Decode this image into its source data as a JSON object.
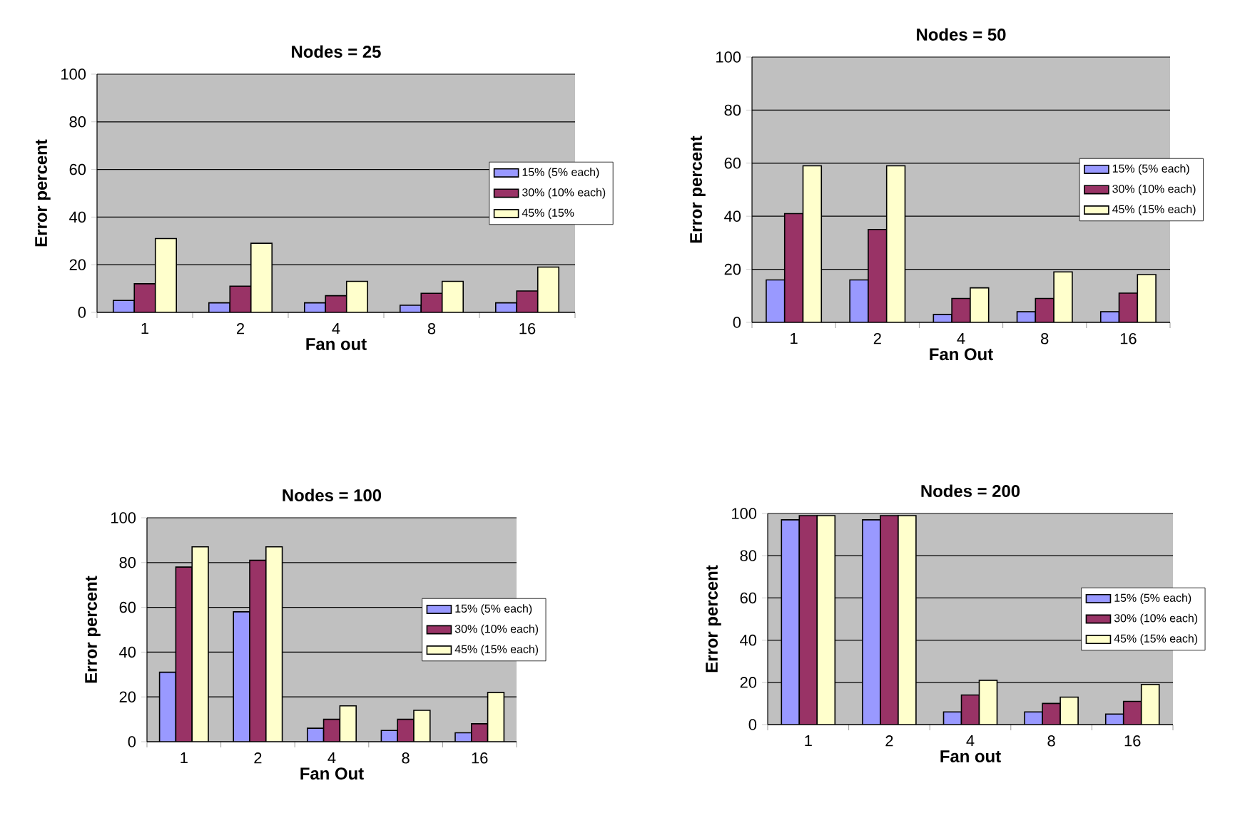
{
  "chart_data": [
    {
      "type": "bar",
      "title": "Nodes = 25",
      "xlabel": "Fan out",
      "ylabel": "Error percent",
      "categories": [
        "1",
        "2",
        "4",
        "8",
        "16"
      ],
      "ylim": [
        0,
        100
      ],
      "yticks": [
        0,
        20,
        40,
        60,
        80,
        100
      ],
      "grid": "y",
      "legend": "right",
      "series": [
        {
          "name": "15% (5% each)",
          "color": "#9999ff",
          "values": [
            5,
            4,
            4,
            3,
            4
          ]
        },
        {
          "name": "30% (10% each)",
          "color": "#993366",
          "values": [
            12,
            11,
            7,
            8,
            9
          ]
        },
        {
          "name": "45% (15%",
          "color": "#ffffcc",
          "values": [
            31,
            29,
            13,
            13,
            19
          ]
        }
      ]
    },
    {
      "type": "bar",
      "title": "Nodes = 50",
      "xlabel": "Fan Out",
      "ylabel": "Error percent",
      "categories": [
        "1",
        "2",
        "4",
        "8",
        "16"
      ],
      "ylim": [
        0,
        100
      ],
      "yticks": [
        0,
        20,
        40,
        60,
        80,
        100
      ],
      "grid": "y",
      "legend": "right",
      "series": [
        {
          "name": "15% (5% each)",
          "color": "#9999ff",
          "values": [
            16,
            16,
            3,
            4,
            4
          ]
        },
        {
          "name": "30% (10% each)",
          "color": "#993366",
          "values": [
            41,
            35,
            9,
            9,
            11
          ]
        },
        {
          "name": "45% (15% each)",
          "color": "#ffffcc",
          "values": [
            59,
            59,
            13,
            19,
            18
          ]
        }
      ]
    },
    {
      "type": "bar",
      "title": "Nodes = 100",
      "xlabel": "Fan Out",
      "ylabel": "Error percent",
      "categories": [
        "1",
        "2",
        "4",
        "8",
        "16"
      ],
      "ylim": [
        0,
        100
      ],
      "yticks": [
        0,
        20,
        40,
        60,
        80,
        100
      ],
      "grid": "y",
      "legend": "right",
      "series": [
        {
          "name": "15% (5% each)",
          "color": "#9999ff",
          "values": [
            31,
            58,
            6,
            5,
            4
          ]
        },
        {
          "name": "30% (10% each)",
          "color": "#993366",
          "values": [
            78,
            81,
            10,
            10,
            8
          ]
        },
        {
          "name": "45% (15% each)",
          "color": "#ffffcc",
          "values": [
            87,
            87,
            16,
            14,
            22
          ]
        }
      ]
    },
    {
      "type": "bar",
      "title": "Nodes = 200",
      "xlabel": "Fan out",
      "ylabel": "Error percent",
      "categories": [
        "1",
        "2",
        "4",
        "8",
        "16"
      ],
      "ylim": [
        0,
        100
      ],
      "yticks": [
        0,
        20,
        40,
        60,
        80,
        100
      ],
      "grid": "y",
      "legend": "right",
      "series": [
        {
          "name": "15% (5% each)",
          "color": "#9999ff",
          "values": [
            97,
            97,
            6,
            6,
            5
          ]
        },
        {
          "name": "30% (10% each)",
          "color": "#993366",
          "values": [
            99,
            99,
            14,
            10,
            11
          ]
        },
        {
          "name": "45% (15% each)",
          "color": "#ffffcc",
          "values": [
            99,
            99,
            21,
            13,
            19
          ]
        }
      ]
    }
  ]
}
